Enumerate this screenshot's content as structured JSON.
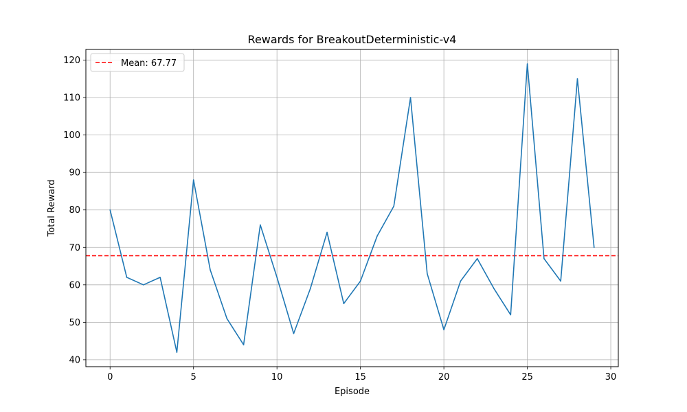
{
  "chart_data": {
    "type": "line",
    "title": "Rewards for BreakoutDeterministic-v4",
    "xlabel": "Episode",
    "ylabel": "Total Reward",
    "xlim": [
      -1.45,
      30.45
    ],
    "ylim": [
      38.15,
      122.85
    ],
    "xticks": [
      0,
      5,
      10,
      15,
      20,
      25,
      30
    ],
    "yticks": [
      40,
      50,
      60,
      70,
      80,
      90,
      100,
      110,
      120
    ],
    "grid": true,
    "legend": {
      "position": "top-left",
      "entries": [
        "Mean: 67.77"
      ]
    },
    "series": [
      {
        "color": "#1f77b4",
        "x": [
          0,
          1,
          2,
          3,
          4,
          5,
          6,
          7,
          8,
          9,
          10,
          11,
          12,
          13,
          14,
          15,
          16,
          17,
          18,
          19,
          20,
          21,
          22,
          23,
          24,
          25,
          26,
          27,
          28,
          29
        ],
        "values": [
          80,
          62,
          60,
          62,
          42,
          88,
          64,
          51,
          44,
          76,
          62,
          47,
          59,
          74,
          55,
          61,
          73,
          81,
          110,
          63,
          48,
          61,
          67,
          59,
          52,
          119,
          67,
          61,
          115,
          70
        ]
      }
    ],
    "reference_lines": [
      {
        "name": "Mean: 67.77",
        "y": 67.77,
        "color": "#ff0000",
        "style": "dashed"
      }
    ]
  }
}
